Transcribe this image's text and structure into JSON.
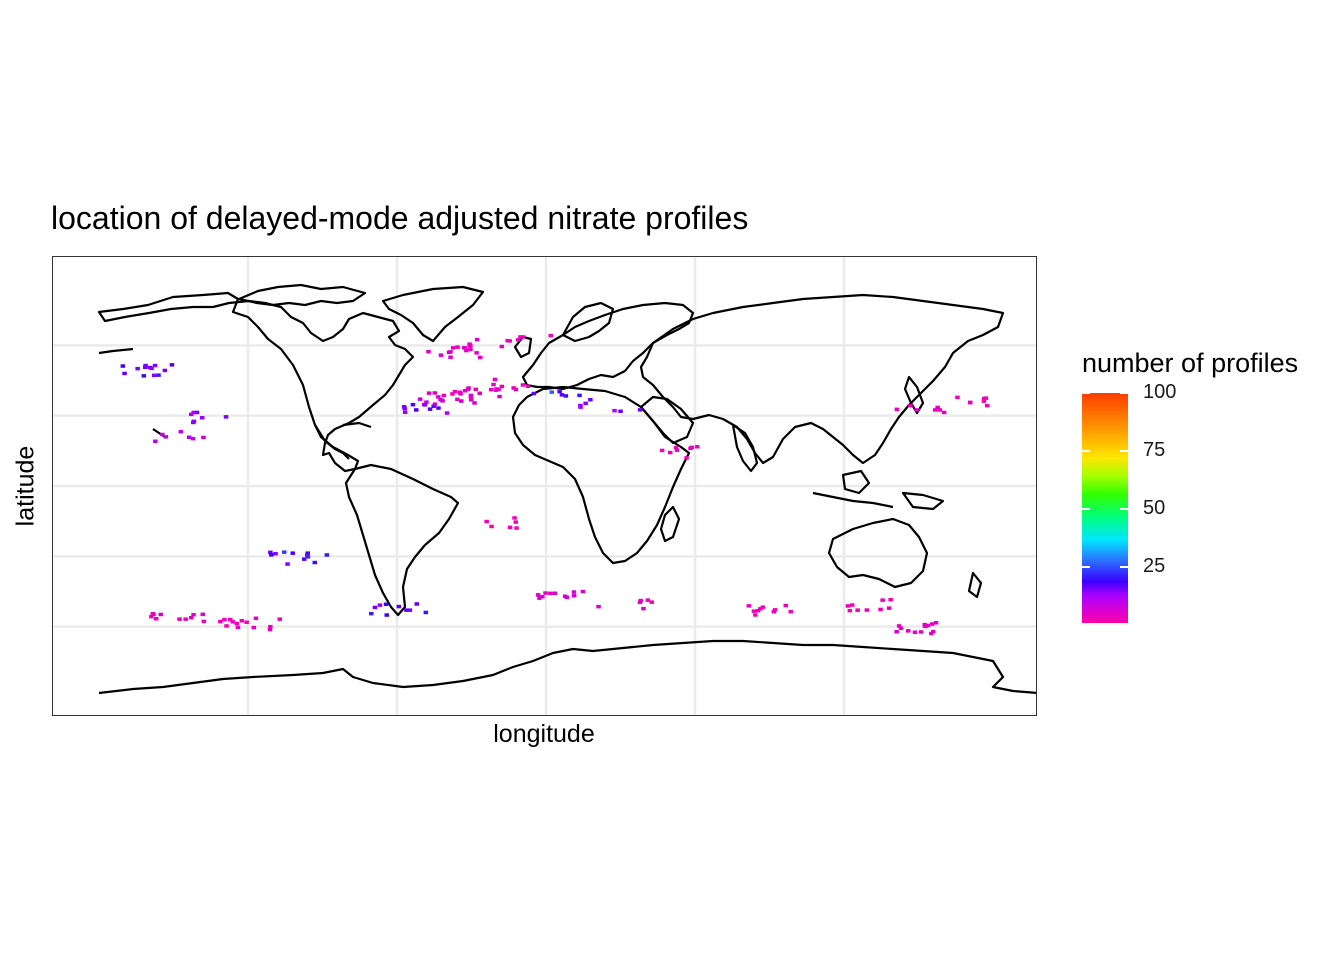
{
  "title": "location of delayed-mode adjusted nitrate profiles",
  "xlabel": "longitude",
  "ylabel": "latitude",
  "legend": {
    "title": "number of profiles",
    "ticks": [
      "100",
      "75",
      "50",
      "25"
    ],
    "tick_values": [
      100,
      75,
      50,
      25
    ],
    "range": [
      1,
      100
    ],
    "colors": [
      "#ff00aa",
      "#aa00ff",
      "#3a00ff",
      "#2a7bff",
      "#00e5ff",
      "#00ff7f",
      "#33ff00",
      "#a6ff00",
      "#ffe600",
      "#ff9a00",
      "#ff3c00"
    ]
  },
  "map": {
    "lon_range": [
      -180,
      180
    ],
    "lat_range": [
      -90,
      90
    ],
    "grid": true,
    "grid_lon": [
      -120,
      -60,
      0,
      60,
      120
    ],
    "grid_lat": [
      -60,
      -30,
      0,
      30,
      60
    ],
    "coastline_color": "#000000",
    "profile_regions": [
      {
        "lon": -38,
        "lat": 58,
        "count": 5
      },
      {
        "lon": -25,
        "lat": 61,
        "count": 4
      },
      {
        "lon": -10,
        "lat": 64,
        "count": 3
      },
      {
        "lon": -40,
        "lat": 38,
        "count": 6
      },
      {
        "lon": -30,
        "lat": 40,
        "count": 4
      },
      {
        "lon": -20,
        "lat": 44,
        "count": 3
      },
      {
        "lon": -50,
        "lat": 33,
        "count": 15
      },
      {
        "lon": -160,
        "lat": 50,
        "count": 18
      },
      {
        "lon": -150,
        "lat": 22,
        "count": 8
      },
      {
        "lon": -140,
        "lat": 30,
        "count": 12
      },
      {
        "lon": 5,
        "lat": 40,
        "count": 22
      },
      {
        "lon": 25,
        "lat": 35,
        "count": 14
      },
      {
        "lon": 55,
        "lat": 15,
        "count": 3
      },
      {
        "lon": 150,
        "lat": 33,
        "count": 4
      },
      {
        "lon": 170,
        "lat": 36,
        "count": 3
      },
      {
        "lon": -20,
        "lat": -15,
        "count": 2
      },
      {
        "lon": -100,
        "lat": -30,
        "count": 20
      },
      {
        "lon": -150,
        "lat": -55,
        "count": 4
      },
      {
        "lon": -120,
        "lat": -58,
        "count": 3
      },
      {
        "lon": 5,
        "lat": -45,
        "count": 5
      },
      {
        "lon": 30,
        "lat": -50,
        "count": 4
      },
      {
        "lon": 90,
        "lat": -52,
        "count": 3
      },
      {
        "lon": 130,
        "lat": -50,
        "count": 3
      },
      {
        "lon": 150,
        "lat": -60,
        "count": 4
      },
      {
        "lon": -60,
        "lat": -52,
        "count": 18
      }
    ]
  }
}
